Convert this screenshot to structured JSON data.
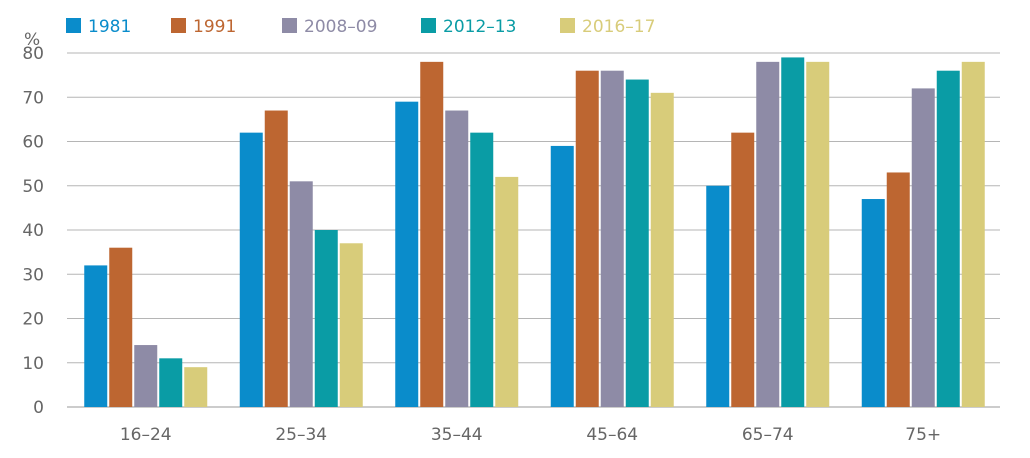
{
  "chart_data": {
    "type": "bar",
    "title": "",
    "xlabel": "",
    "ylabel": "%",
    "ylim": [
      0,
      80
    ],
    "yticks": [
      0,
      10,
      20,
      30,
      40,
      50,
      60,
      70,
      80
    ],
    "grid": true,
    "legend_position": "top-left",
    "categories": [
      "16–24",
      "25–34",
      "35–44",
      "45–64",
      "65–74",
      "75+"
    ],
    "series": [
      {
        "name": "1981",
        "color": "#0a8ccb",
        "values": [
          32,
          62,
          69,
          59,
          50,
          47
        ]
      },
      {
        "name": "1991",
        "color": "#bd6631",
        "values": [
          36,
          67,
          78,
          76,
          62,
          53
        ]
      },
      {
        "name": "2008–09",
        "color": "#8e8ba6",
        "values": [
          14,
          51,
          67,
          76,
          78,
          72
        ]
      },
      {
        "name": "2012–13",
        "color": "#0a9ca5",
        "values": [
          11,
          40,
          62,
          74,
          79,
          76
        ]
      },
      {
        "name": "2016–17",
        "color": "#d8cc7a",
        "values": [
          9,
          37,
          52,
          71,
          78,
          78
        ]
      }
    ]
  }
}
